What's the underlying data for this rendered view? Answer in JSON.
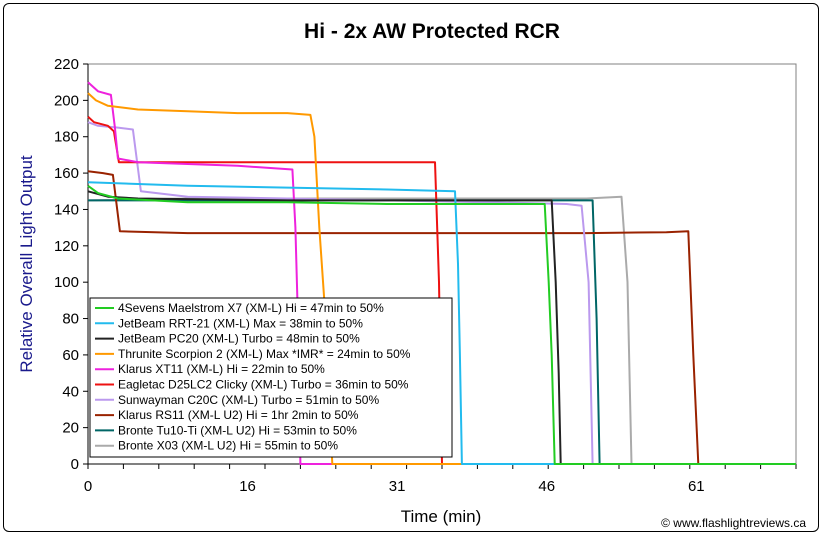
{
  "chart_data": {
    "type": "line",
    "title": "Hi - 2x AW Protected RCR",
    "xlabel": "Time (min)",
    "ylabel": "Relative Overall Light Output",
    "xlim": [
      0,
      71
    ],
    "ylim": [
      0,
      220
    ],
    "xticks": [
      0,
      16,
      31,
      46,
      61
    ],
    "yticks": [
      0,
      20,
      40,
      60,
      80,
      100,
      120,
      140,
      160,
      180,
      200,
      220
    ],
    "grid": false,
    "legend_position": "bottom-left",
    "credit": "© www.flashlightreviews.ca",
    "series": [
      {
        "name": "4Sevens Maelstrom X7 (XM-L) Hi = 47min to 50%",
        "color": "#22cc22",
        "points": [
          [
            0,
            153
          ],
          [
            1,
            149
          ],
          [
            3,
            146
          ],
          [
            10,
            144
          ],
          [
            20,
            144
          ],
          [
            30,
            143
          ],
          [
            40,
            143
          ],
          [
            45.8,
            143
          ],
          [
            46.2,
            100
          ],
          [
            46.5,
            60
          ],
          [
            46.8,
            0
          ],
          [
            71,
            0
          ]
        ]
      },
      {
        "name": "JetBeam RRT-21 (XM-L) Max = 38min to 50%",
        "color": "#22bbee",
        "points": [
          [
            0,
            155
          ],
          [
            5,
            154
          ],
          [
            10,
            153
          ],
          [
            20,
            152
          ],
          [
            30,
            151
          ],
          [
            36.8,
            150
          ],
          [
            37.1,
            110
          ],
          [
            37.3,
            60
          ],
          [
            37.5,
            0
          ],
          [
            71,
            0
          ]
        ]
      },
      {
        "name": "JetBeam PC20 (XM-L) Turbo = 48min to 50%",
        "color": "#222222",
        "points": [
          [
            0,
            150
          ],
          [
            2,
            147
          ],
          [
            5,
            146
          ],
          [
            20,
            145
          ],
          [
            30,
            145
          ],
          [
            40,
            145
          ],
          [
            46.5,
            145
          ],
          [
            46.9,
            100
          ],
          [
            47.2,
            50
          ],
          [
            47.4,
            0
          ],
          [
            71,
            0
          ]
        ]
      },
      {
        "name": "Thrunite Scorpion 2 (XM-L) Max *IMR* = 24min to 50%",
        "color": "#ff9900",
        "points": [
          [
            0,
            204
          ],
          [
            0.8,
            200
          ],
          [
            2,
            197
          ],
          [
            5,
            195
          ],
          [
            10,
            194
          ],
          [
            15,
            193
          ],
          [
            20,
            193
          ],
          [
            22.3,
            192
          ],
          [
            22.7,
            180
          ],
          [
            23.2,
            130
          ],
          [
            23.7,
            90
          ],
          [
            24.0,
            60
          ],
          [
            24.5,
            0
          ],
          [
            71,
            0
          ]
        ]
      },
      {
        "name": "Klarus XT11 (XM-L) Hi = 22min to 50%",
        "color": "#ee22dd",
        "points": [
          [
            0,
            210
          ],
          [
            1,
            205
          ],
          [
            2.3,
            203
          ],
          [
            2.7,
            185
          ],
          [
            3,
            168
          ],
          [
            5,
            166
          ],
          [
            10,
            165
          ],
          [
            15,
            164
          ],
          [
            20.5,
            162
          ],
          [
            20.8,
            130
          ],
          [
            21.1,
            70
          ],
          [
            21.3,
            0
          ],
          [
            71,
            0
          ]
        ]
      },
      {
        "name": "Eagletac D25LC2 Clicky (XM-L) Turbo = 36min to 50%",
        "color": "#ee1111",
        "points": [
          [
            0,
            191
          ],
          [
            0.6,
            188
          ],
          [
            2,
            186
          ],
          [
            2.6,
            183
          ],
          [
            3.1,
            166
          ],
          [
            10,
            166
          ],
          [
            20,
            166
          ],
          [
            30,
            166
          ],
          [
            34.8,
            166
          ],
          [
            35.2,
            100
          ],
          [
            35.5,
            0
          ],
          [
            71,
            0
          ]
        ]
      },
      {
        "name": "Sunwayman C20C (XM-L) Turbo = 51min to 50%",
        "color": "#bb99ee",
        "points": [
          [
            0,
            188
          ],
          [
            1,
            186
          ],
          [
            3,
            185
          ],
          [
            4.5,
            184
          ],
          [
            5.3,
            150
          ],
          [
            10,
            147
          ],
          [
            20,
            146
          ],
          [
            30,
            145
          ],
          [
            40,
            144
          ],
          [
            48,
            143
          ],
          [
            49.5,
            142
          ],
          [
            50.2,
            100
          ],
          [
            50.6,
            0
          ],
          [
            71,
            0
          ]
        ]
      },
      {
        "name": "Klarus RS11 (XM-L U2) Hi = 1hr 2min to 50%",
        "color": "#992200",
        "points": [
          [
            0,
            161
          ],
          [
            1.5,
            160
          ],
          [
            2.5,
            159
          ],
          [
            3.2,
            128
          ],
          [
            10,
            127
          ],
          [
            20,
            127
          ],
          [
            30,
            127
          ],
          [
            40,
            127
          ],
          [
            50,
            127
          ],
          [
            58,
            127.5
          ],
          [
            60.2,
            128
          ],
          [
            60.7,
            60
          ],
          [
            61.2,
            0
          ],
          [
            71,
            0
          ]
        ]
      },
      {
        "name": "Bronte Tu10-Ti (XM-L U2) Hi = 53min to 50%",
        "color": "#006666",
        "points": [
          [
            0,
            145
          ],
          [
            10,
            145
          ],
          [
            20,
            145
          ],
          [
            30,
            145
          ],
          [
            40,
            145
          ],
          [
            50.6,
            145
          ],
          [
            51.0,
            80
          ],
          [
            51.3,
            0
          ],
          [
            71,
            0
          ]
        ]
      },
      {
        "name": "Bronte X03 (XM-L U2) Hi = 55min to 50%",
        "color": "#aaaaaa",
        "points": [
          [
            0,
            145
          ],
          [
            10,
            146
          ],
          [
            20,
            146
          ],
          [
            30,
            146
          ],
          [
            40,
            146
          ],
          [
            50,
            146
          ],
          [
            53.5,
            147
          ],
          [
            54.1,
            100
          ],
          [
            54.5,
            0
          ],
          [
            71,
            0
          ]
        ]
      }
    ]
  }
}
